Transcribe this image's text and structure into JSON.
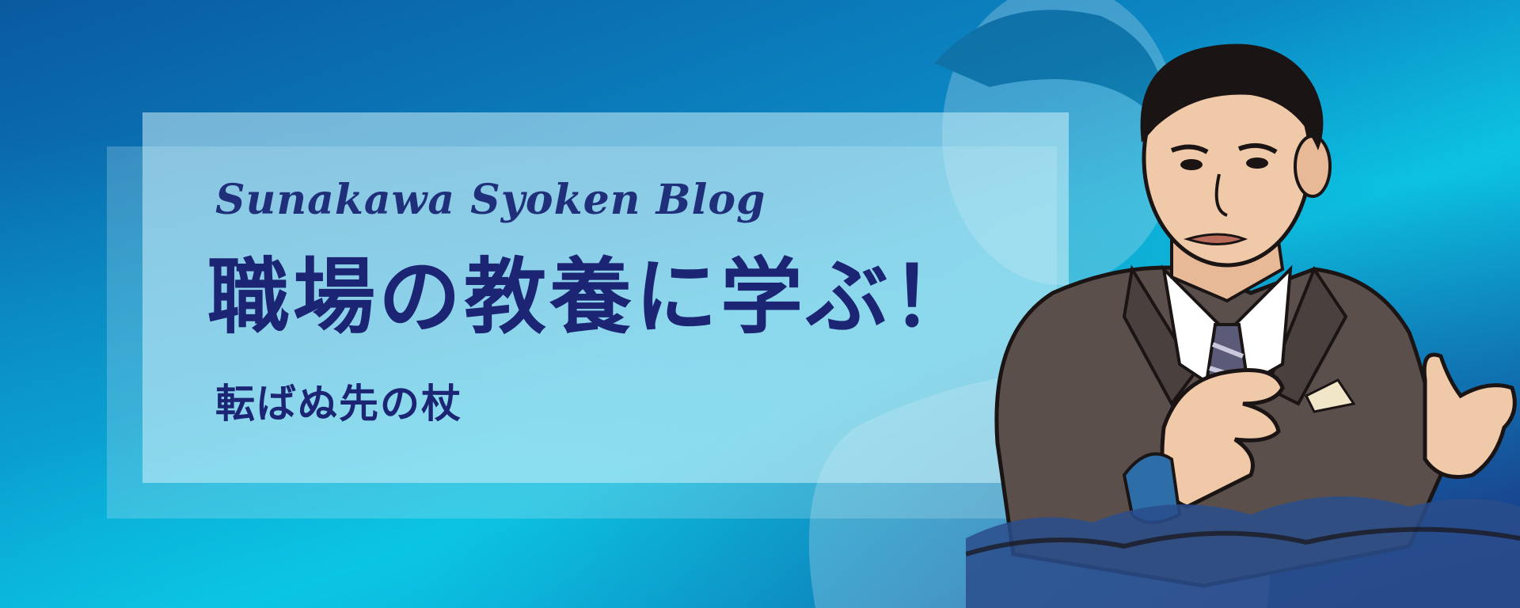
{
  "banner": {
    "subtitle_en": "Sunakawa Syoken Blog",
    "title_jp": "職場の教養に学ぶ！",
    "tagline_jp": "転ばぬ先の杖"
  },
  "illustration": {
    "subject": "businessman-illustration",
    "colors": {
      "suit": "#5b4f4c",
      "skin": "#f0c9a8",
      "hair": "#1a1414",
      "tie": "#5b5a78"
    }
  },
  "colors": {
    "text_primary": "#1c2573",
    "background_left": "#0a5aa0",
    "background_right": "#1c3f8a",
    "panel": "#cdf0fa"
  }
}
